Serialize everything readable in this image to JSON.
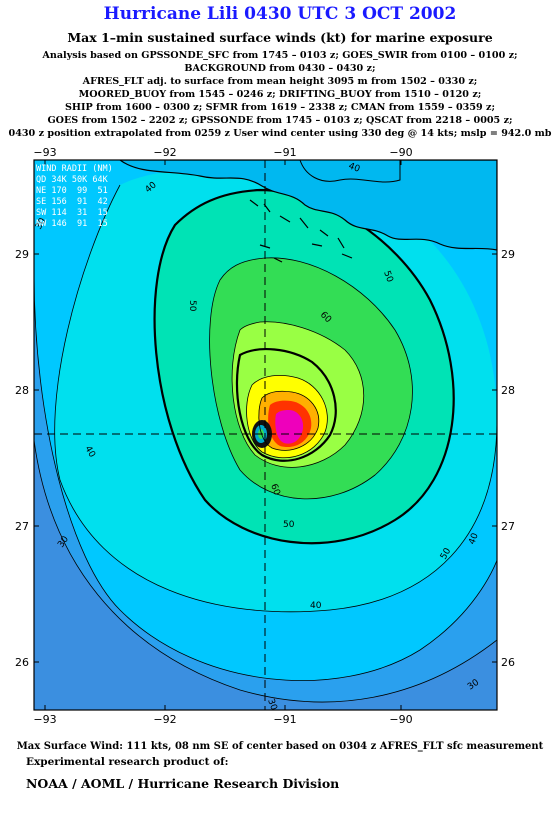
{
  "header": {
    "title": "Hurricane Lili 0430 UTC 3 OCT 2002",
    "subtitle": "Max 1–min sustained surface winds (kt) for marine exposure",
    "analysis_lines": [
      "Analysis based on  GPSSONDE_SFC from 1745 – 0103 z;  GOES_SWIR from 0100 – 0100 z;",
      "BACKGROUND from 0430 – 0430 z;",
      "AFRES_FLT adj. to surface from mean height 3095 m from 1502 – 0330 z;",
      "MOORED_BUOY from 1545 – 0246 z;  DRIFTING_BUOY from 1510 – 0120 z;",
      "SHIP from 1600 – 0300 z;  SFMR from 1619 – 2338 z;  CMAN from 1559 – 0359 z;",
      "GOES from 1502 – 2202 z;  GPSSONDE from 1745 – 0103 z;  QSCAT from 2218 – 0005 z;",
      "0430 z position extrapolated from 0259 z User wind center using 330 deg @ 14 kts; mslp = 942.0 mb"
    ]
  },
  "wind_radii": {
    "header": "WIND RADII (NM)",
    "columns": [
      "QD",
      "34K",
      "50K",
      "64K"
    ],
    "rows": [
      [
        "NE",
        "170",
        "99",
        "51"
      ],
      [
        "SE",
        "156",
        "91",
        "42"
      ],
      [
        "SW",
        "114",
        "31",
        "15"
      ],
      [
        "NW",
        "146",
        "91",
        "15"
      ]
    ]
  },
  "map": {
    "x_ticks": [
      "−93",
      "−92",
      "−91",
      "−90"
    ],
    "y_ticks": [
      "29",
      "28",
      "27",
      "26"
    ],
    "contour_labels": [
      "40",
      "50",
      "60",
      "60",
      "50",
      "40",
      "30",
      "30",
      "40",
      "50",
      "40",
      "30",
      "40",
      "30",
      "50"
    ],
    "colors": {
      "background": "#00c8ff",
      "c30": "#22aaee",
      "c40": "#00ddee",
      "c50": "#00e0b0",
      "c60": "#55ee55",
      "c70": "#99ff44",
      "c80": "#ffff00",
      "c90": "#ffb000",
      "c100": "#ff3300",
      "c110": "#ee00bb"
    }
  },
  "footer": {
    "max_wind": "Max Surface Wind: 111 kts, 08 nm SE of center based on 0304 z AFRES_FLT sfc measurement",
    "experimental": "Experimental research product of:",
    "org": "NOAA / AOML / Hurricane Research Division"
  }
}
